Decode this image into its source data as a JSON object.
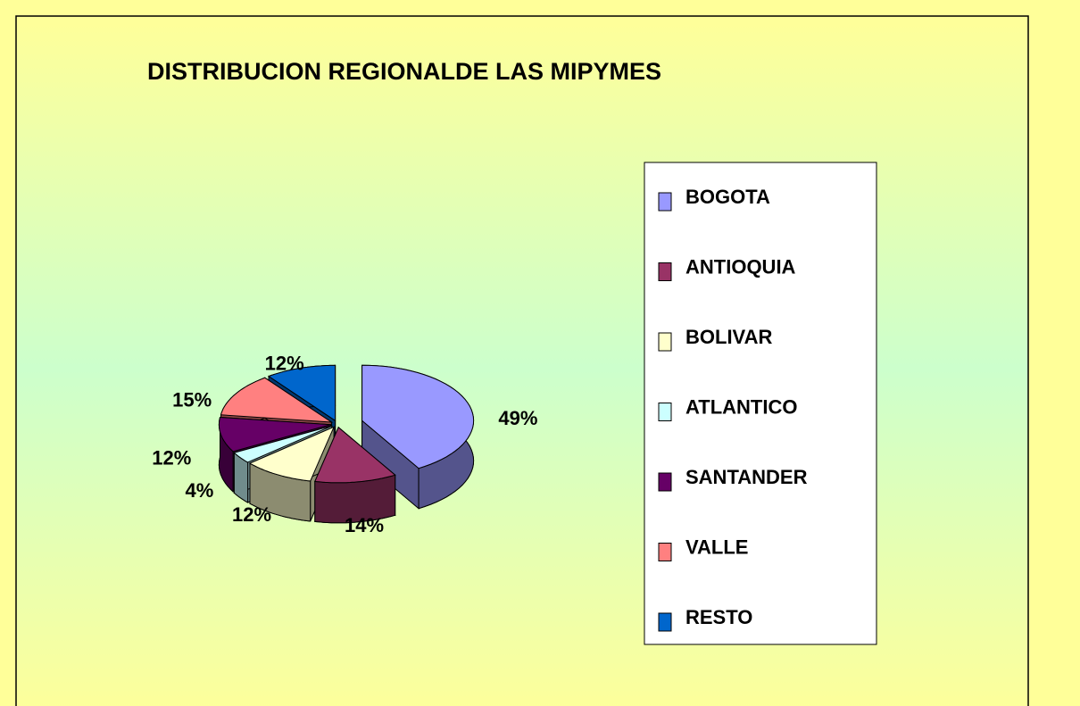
{
  "chart_data": {
    "type": "pie3d",
    "title": "DISTRIBUCION REGIONALDE LAS MIPYMES",
    "categories": [
      "BOGOTA",
      "ANTIOQUIA",
      "BOLIVAR",
      "ATLANTICO",
      "SANTANDER",
      "VALLE",
      "RESTO"
    ],
    "values": [
      49,
      14,
      12,
      4,
      12,
      15,
      12
    ],
    "colors": [
      "#9999ff",
      "#993366",
      "#ffffcc",
      "#ccffff",
      "#660066",
      "#ff8080",
      "#0066cc"
    ],
    "value_labels": [
      "49%",
      "14%",
      "12%",
      "4%",
      "12%",
      "15%",
      "12%"
    ],
    "legend": "right"
  }
}
